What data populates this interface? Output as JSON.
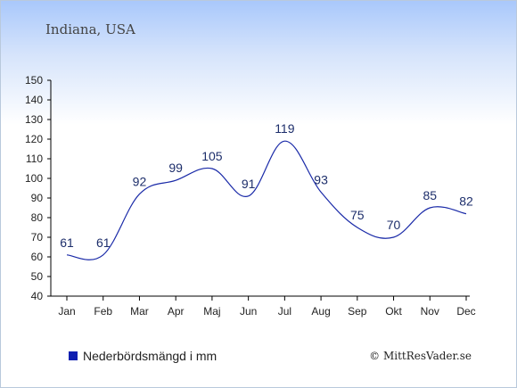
{
  "chart_data": {
    "type": "line",
    "title": "Indiana, USA",
    "categories": [
      "Jan",
      "Feb",
      "Mar",
      "Apr",
      "Maj",
      "Jun",
      "Jul",
      "Aug",
      "Sep",
      "Okt",
      "Nov",
      "Dec"
    ],
    "series": [
      {
        "name": "Nederbördsmängd i mm",
        "values": [
          61,
          61,
          92,
          99,
          105,
          91,
          119,
          93,
          75,
          70,
          85,
          82
        ]
      }
    ],
    "ylim": [
      40,
      150
    ],
    "yticks": [
      40,
      50,
      60,
      70,
      80,
      90,
      100,
      110,
      120,
      130,
      140,
      150
    ],
    "grid": false,
    "legend": "bottom-left",
    "line_color": "#1a2aa8",
    "legend_color": "#0f1fb0"
  },
  "credit": "© MittResVader.se"
}
